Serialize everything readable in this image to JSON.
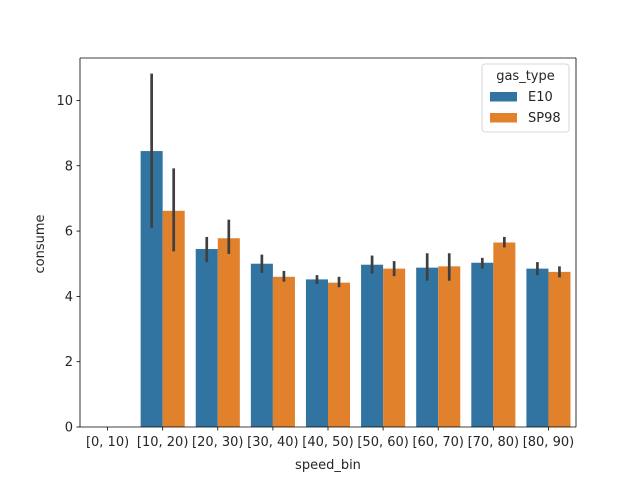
{
  "chart_data": {
    "type": "bar",
    "xlabel": "speed_bin",
    "ylabel": "consume",
    "ylim": [
      0,
      11.3
    ],
    "yticks": [
      0,
      2,
      4,
      6,
      8,
      10
    ],
    "ytick_labels": [
      "0",
      "2",
      "4",
      "6",
      "8",
      "10"
    ],
    "categories": [
      "[0, 10)",
      "[10, 20)",
      "[20, 30)",
      "[30, 40)",
      "[40, 50)",
      "[50, 60)",
      "[60, 70)",
      "[70, 80)",
      "[80, 90)"
    ],
    "legend": {
      "title": "gas_type",
      "position": "upper right"
    },
    "series": [
      {
        "name": "E10",
        "color": "#3274a1",
        "values": [
          null,
          8.45,
          5.45,
          5.0,
          4.52,
          4.97,
          4.88,
          5.03,
          4.85
        ],
        "err_low": [
          null,
          6.1,
          5.05,
          4.72,
          4.38,
          4.7,
          4.48,
          4.85,
          4.65
        ],
        "err_high": [
          null,
          10.82,
          5.82,
          5.28,
          4.65,
          5.25,
          5.32,
          5.18,
          5.05
        ]
      },
      {
        "name": "SP98",
        "color": "#e1812c",
        "values": [
          null,
          6.62,
          5.78,
          4.6,
          4.42,
          4.85,
          4.92,
          5.65,
          4.75
        ],
        "err_low": [
          null,
          5.38,
          5.3,
          4.45,
          4.28,
          4.62,
          4.48,
          5.5,
          4.58
        ],
        "err_high": [
          null,
          7.92,
          6.35,
          4.78,
          4.6,
          5.08,
          5.32,
          5.82,
          4.92
        ]
      }
    ],
    "errorbar_color": "#3f3f3f"
  }
}
